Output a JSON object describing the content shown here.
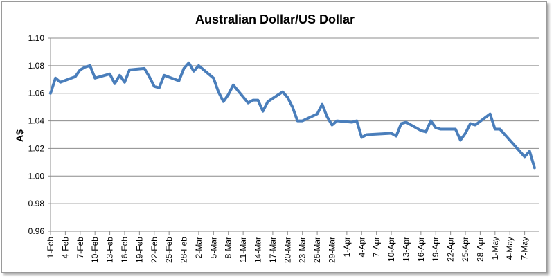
{
  "chart_data": {
    "type": "line",
    "title": "Australian Dollar/US Dollar",
    "xlabel": "",
    "ylabel": "A$",
    "ylim": [
      0.96,
      1.1
    ],
    "y_ticks": [
      "0.96",
      "0.98",
      "1.00",
      "1.02",
      "1.04",
      "1.06",
      "1.08",
      "1.10"
    ],
    "x_ticks": [
      "1-Feb",
      "4-Feb",
      "7-Feb",
      "10-Feb",
      "13-Feb",
      "16-Feb",
      "19-Feb",
      "22-Feb",
      "25-Feb",
      "28-Feb",
      "2-Mar",
      "5-Mar",
      "8-Mar",
      "11-Mar",
      "14-Mar",
      "17-Mar",
      "20-Mar",
      "23-Mar",
      "26-Mar",
      "29-Mar",
      "1-Apr",
      "4-Apr",
      "7-Apr",
      "10-Apr",
      "13-Apr",
      "16-Apr",
      "19-Apr",
      "22-Apr",
      "25-Apr",
      "28-Apr",
      "1-May",
      "4-May",
      "7-May"
    ],
    "grid": "horizontal",
    "legend": "none",
    "series": [
      {
        "color": "#4a7ebb",
        "points": [
          [
            "1-Feb",
            1.06
          ],
          [
            "2-Feb",
            1.071
          ],
          [
            "3-Feb",
            1.068
          ],
          [
            "6-Feb",
            1.072
          ],
          [
            "7-Feb",
            1.077
          ],
          [
            "8-Feb",
            1.079
          ],
          [
            "9-Feb",
            1.08
          ],
          [
            "10-Feb",
            1.071
          ],
          [
            "13-Feb",
            1.074
          ],
          [
            "14-Feb",
            1.067
          ],
          [
            "15-Feb",
            1.073
          ],
          [
            "16-Feb",
            1.068
          ],
          [
            "17-Feb",
            1.077
          ],
          [
            "20-Feb",
            1.078
          ],
          [
            "21-Feb",
            1.072
          ],
          [
            "22-Feb",
            1.065
          ],
          [
            "23-Feb",
            1.064
          ],
          [
            "24-Feb",
            1.073
          ],
          [
            "27-Feb",
            1.069
          ],
          [
            "28-Feb",
            1.078
          ],
          [
            "29-Feb",
            1.082
          ],
          [
            "1-Mar",
            1.076
          ],
          [
            "2-Mar",
            1.08
          ],
          [
            "5-Mar",
            1.071
          ],
          [
            "6-Mar",
            1.061
          ],
          [
            "7-Mar",
            1.054
          ],
          [
            "8-Mar",
            1.059
          ],
          [
            "9-Mar",
            1.066
          ],
          [
            "12-Mar",
            1.053
          ],
          [
            "13-Mar",
            1.055
          ],
          [
            "14-Mar",
            1.055
          ],
          [
            "15-Mar",
            1.047
          ],
          [
            "16-Mar",
            1.054
          ],
          [
            "19-Mar",
            1.061
          ],
          [
            "20-Mar",
            1.057
          ],
          [
            "21-Mar",
            1.05
          ],
          [
            "22-Mar",
            1.04
          ],
          [
            "23-Mar",
            1.04
          ],
          [
            "26-Mar",
            1.045
          ],
          [
            "27-Mar",
            1.052
          ],
          [
            "28-Mar",
            1.043
          ],
          [
            "29-Mar",
            1.037
          ],
          [
            "30-Mar",
            1.04
          ],
          [
            "2-Apr",
            1.039
          ],
          [
            "3-Apr",
            1.04
          ],
          [
            "4-Apr",
            1.028
          ],
          [
            "5-Apr",
            1.03
          ],
          [
            "10-Apr",
            1.031
          ],
          [
            "11-Apr",
            1.029
          ],
          [
            "12-Apr",
            1.038
          ],
          [
            "13-Apr",
            1.039
          ],
          [
            "16-Apr",
            1.033
          ],
          [
            "17-Apr",
            1.032
          ],
          [
            "18-Apr",
            1.04
          ],
          [
            "19-Apr",
            1.035
          ],
          [
            "20-Apr",
            1.034
          ],
          [
            "23-Apr",
            1.034
          ],
          [
            "24-Apr",
            1.026
          ],
          [
            "25-Apr",
            1.031
          ],
          [
            "26-Apr",
            1.038
          ],
          [
            "27-Apr",
            1.037
          ],
          [
            "30-Apr",
            1.045
          ],
          [
            "1-May",
            1.034
          ],
          [
            "2-May",
            1.034
          ],
          [
            "7-May",
            1.014
          ],
          [
            "8-May",
            1.018
          ],
          [
            "9-May",
            1.006
          ]
        ]
      }
    ]
  }
}
